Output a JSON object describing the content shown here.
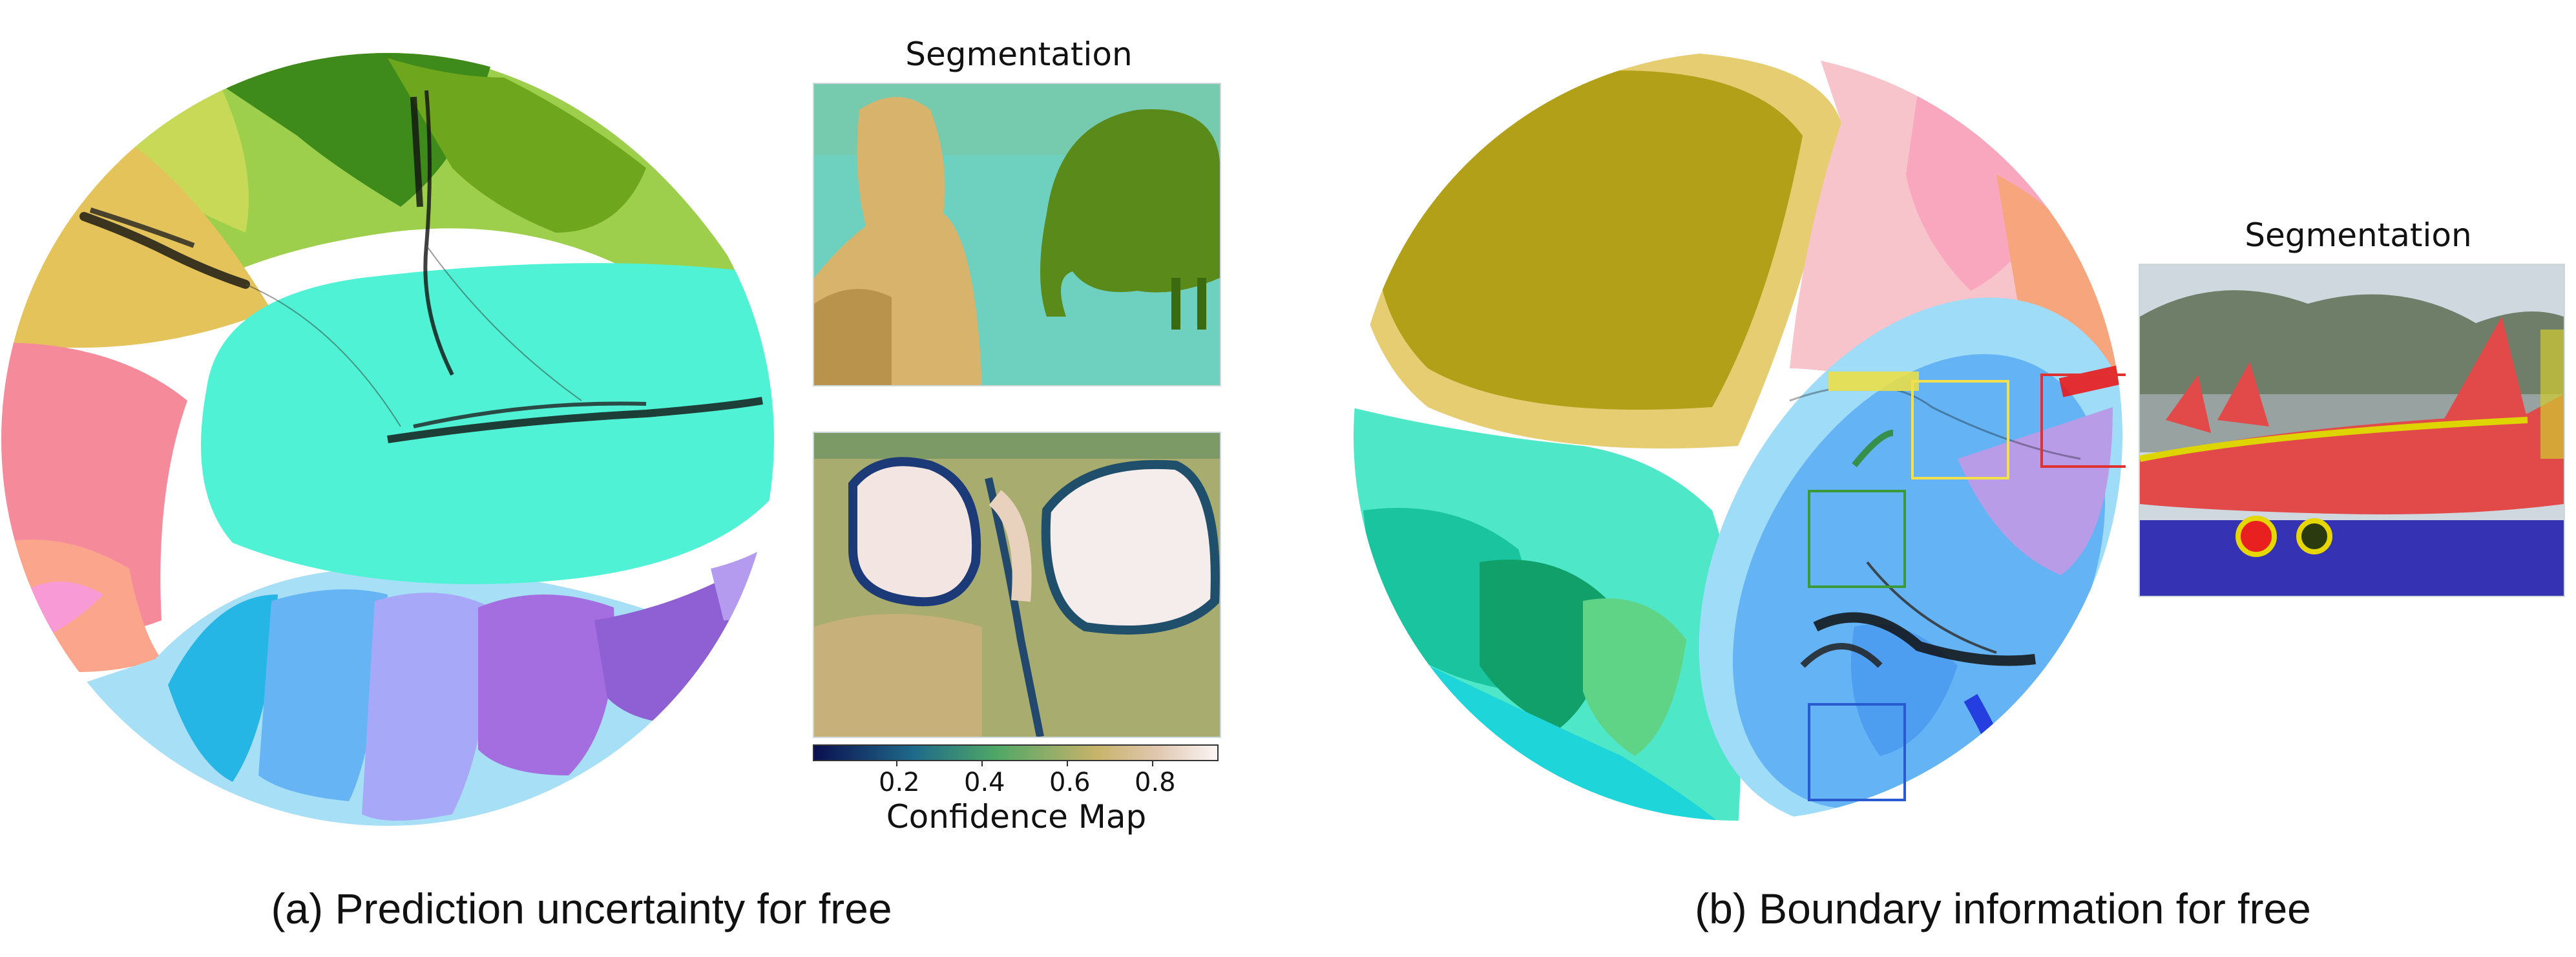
{
  "panel_a": {
    "segmentation_title": "Segmentation",
    "confidence_title": "Confidence Map",
    "colorbar_ticks": [
      "0.2",
      "0.4",
      "0.6",
      "0.8"
    ],
    "caption": "(a) Prediction uncertainty for free"
  },
  "panel_b": {
    "segmentation_title": "Segmentation",
    "caption": "(b) Boundary information for free"
  },
  "colors": {
    "disk_a_main": "#4ff2d4",
    "disk_b_main": "#c9c84e",
    "highlight_boxes": [
      "#f4e04a",
      "#e03030",
      "#3a9a3a",
      "#2a5ad0"
    ]
  }
}
